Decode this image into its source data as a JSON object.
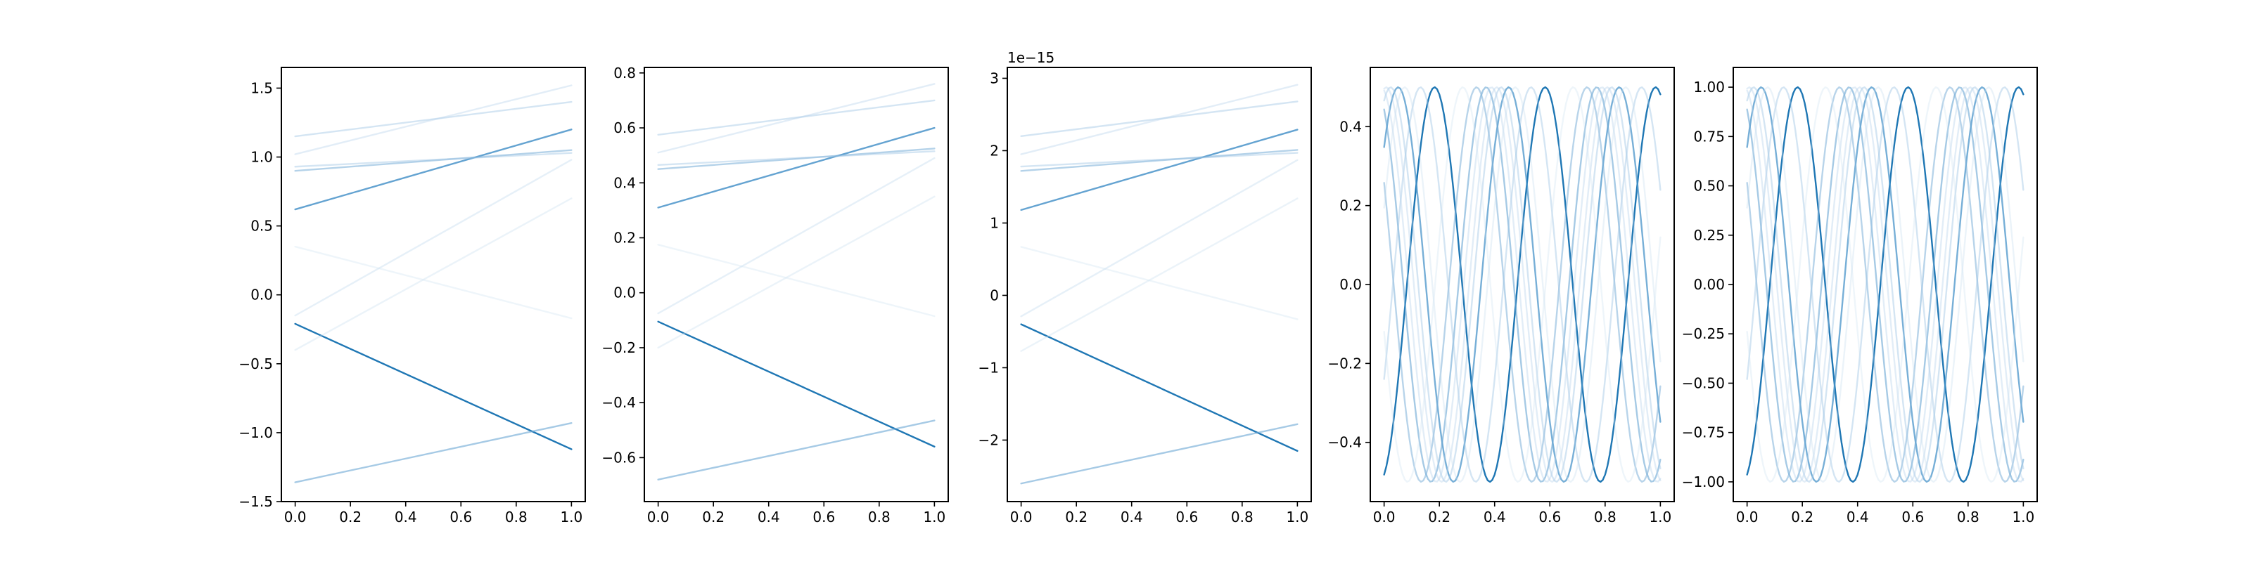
{
  "chart_data": [
    {
      "type": "line",
      "xlim": [
        -0.05,
        1.05
      ],
      "ylim": [
        -1.5,
        1.65
      ],
      "xticks": [
        "0.0",
        "0.2",
        "0.4",
        "0.6",
        "0.8",
        "1.0"
      ],
      "yticks": [
        "1.5",
        "1.0",
        "0.5",
        "0.0",
        "−0.5",
        "−1.0",
        "−1.5"
      ],
      "offset_label": "",
      "series": [
        {
          "x": [
            0.0,
            1.0
          ],
          "y": [
            -0.21,
            -1.12
          ],
          "color": "#1f77b4",
          "opacity": 1.0
        },
        {
          "x": [
            0.0,
            1.0
          ],
          "y": [
            0.62,
            1.2
          ],
          "color": "#3d8cc6",
          "opacity": 0.8
        },
        {
          "x": [
            0.0,
            1.0
          ],
          "y": [
            -1.36,
            -0.93
          ],
          "color": "#6aa6d4",
          "opacity": 0.6
        },
        {
          "x": [
            0.0,
            1.0
          ],
          "y": [
            0.9,
            1.05
          ],
          "color": "#6aa6d4",
          "opacity": 0.5
        },
        {
          "x": [
            0.0,
            1.0
          ],
          "y": [
            0.93,
            1.03
          ],
          "color": "#9fc5e4",
          "opacity": 0.45
        },
        {
          "x": [
            0.0,
            1.0
          ],
          "y": [
            1.15,
            1.4
          ],
          "color": "#9fc5e4",
          "opacity": 0.45
        },
        {
          "x": [
            0.0,
            1.0
          ],
          "y": [
            1.02,
            1.52
          ],
          "color": "#b6d3ea",
          "opacity": 0.4
        },
        {
          "x": [
            0.0,
            1.0
          ],
          "y": [
            -0.15,
            0.98
          ],
          "color": "#b6d3ea",
          "opacity": 0.35
        },
        {
          "x": [
            0.0,
            1.0
          ],
          "y": [
            -0.4,
            0.7
          ],
          "color": "#c6dcee",
          "opacity": 0.35
        },
        {
          "x": [
            0.0,
            1.0
          ],
          "y": [
            0.35,
            -0.17
          ],
          "color": "#cfe2f1",
          "opacity": 0.35
        }
      ]
    },
    {
      "type": "line",
      "xlim": [
        -0.05,
        1.05
      ],
      "ylim": [
        -0.76,
        0.82
      ],
      "xticks": [
        "0.0",
        "0.2",
        "0.4",
        "0.6",
        "0.8",
        "1.0"
      ],
      "yticks": [
        "0.8",
        "0.6",
        "0.4",
        "0.2",
        "0.0",
        "−0.2",
        "−0.4",
        "−0.6"
      ],
      "offset_label": "",
      "series": [
        {
          "x": [
            0.0,
            1.0
          ],
          "y": [
            -0.105,
            -0.56
          ],
          "color": "#1f77b4",
          "opacity": 1.0
        },
        {
          "x": [
            0.0,
            1.0
          ],
          "y": [
            0.31,
            0.6
          ],
          "color": "#3d8cc6",
          "opacity": 0.8
        },
        {
          "x": [
            0.0,
            1.0
          ],
          "y": [
            -0.68,
            -0.465
          ],
          "color": "#6aa6d4",
          "opacity": 0.6
        },
        {
          "x": [
            0.0,
            1.0
          ],
          "y": [
            0.45,
            0.525
          ],
          "color": "#6aa6d4",
          "opacity": 0.5
        },
        {
          "x": [
            0.0,
            1.0
          ],
          "y": [
            0.465,
            0.515
          ],
          "color": "#9fc5e4",
          "opacity": 0.45
        },
        {
          "x": [
            0.0,
            1.0
          ],
          "y": [
            0.575,
            0.7
          ],
          "color": "#9fc5e4",
          "opacity": 0.45
        },
        {
          "x": [
            0.0,
            1.0
          ],
          "y": [
            0.51,
            0.76
          ],
          "color": "#b6d3ea",
          "opacity": 0.4
        },
        {
          "x": [
            0.0,
            1.0
          ],
          "y": [
            -0.075,
            0.49
          ],
          "color": "#b6d3ea",
          "opacity": 0.35
        },
        {
          "x": [
            0.0,
            1.0
          ],
          "y": [
            -0.2,
            0.35
          ],
          "color": "#c6dcee",
          "opacity": 0.35
        },
        {
          "x": [
            0.0,
            1.0
          ],
          "y": [
            0.175,
            -0.085
          ],
          "color": "#cfe2f1",
          "opacity": 0.35
        }
      ]
    },
    {
      "type": "line",
      "xlim": [
        -0.05,
        1.05
      ],
      "ylim": [
        -2.85,
        3.15
      ],
      "xticks": [
        "0.0",
        "0.2",
        "0.4",
        "0.6",
        "0.8",
        "1.0"
      ],
      "yticks": [
        "3",
        "2",
        "1",
        "0",
        "−1",
        "−2"
      ],
      "offset_label": "1e−15",
      "series": [
        {
          "x": [
            0.0,
            1.0
          ],
          "y": [
            -0.4,
            -2.15
          ],
          "color": "#1f77b4",
          "opacity": 1.0
        },
        {
          "x": [
            0.0,
            1.0
          ],
          "y": [
            1.18,
            2.29
          ],
          "color": "#3d8cc6",
          "opacity": 0.8
        },
        {
          "x": [
            0.0,
            1.0
          ],
          "y": [
            -2.6,
            -1.78
          ],
          "color": "#6aa6d4",
          "opacity": 0.6
        },
        {
          "x": [
            0.0,
            1.0
          ],
          "y": [
            1.72,
            2.01
          ],
          "color": "#6aa6d4",
          "opacity": 0.5
        },
        {
          "x": [
            0.0,
            1.0
          ],
          "y": [
            1.78,
            1.97
          ],
          "color": "#9fc5e4",
          "opacity": 0.45
        },
        {
          "x": [
            0.0,
            1.0
          ],
          "y": [
            2.2,
            2.68
          ],
          "color": "#9fc5e4",
          "opacity": 0.45
        },
        {
          "x": [
            0.0,
            1.0
          ],
          "y": [
            1.95,
            2.91
          ],
          "color": "#b6d3ea",
          "opacity": 0.4
        },
        {
          "x": [
            0.0,
            1.0
          ],
          "y": [
            -0.29,
            1.87
          ],
          "color": "#b6d3ea",
          "opacity": 0.35
        },
        {
          "x": [
            0.0,
            1.0
          ],
          "y": [
            -0.77,
            1.34
          ],
          "color": "#c6dcee",
          "opacity": 0.35
        },
        {
          "x": [
            0.0,
            1.0
          ],
          "y": [
            0.67,
            -0.33
          ],
          "color": "#cfe2f1",
          "opacity": 0.35
        }
      ]
    },
    {
      "type": "line",
      "xlim": [
        -0.05,
        1.05
      ],
      "ylim": [
        -0.55,
        0.55
      ],
      "xticks": [
        "0.0",
        "0.2",
        "0.4",
        "0.6",
        "0.8",
        "1.0"
      ],
      "yticks": [
        "0.4",
        "0.2",
        "0.0",
        "−0.2",
        "−0.4"
      ],
      "offset_label": "",
      "wave": {
        "amplitude": 0.5,
        "cycles": 2.5,
        "samples": 120
      },
      "series": [
        {
          "phase": -1.3,
          "color": "#1f77b4",
          "opacity": 1.0
        },
        {
          "phase": 0.77,
          "color": "#4a94c9",
          "opacity": 0.75
        },
        {
          "phase": 2.05,
          "color": "#6aa6d4",
          "opacity": 0.6
        },
        {
          "phase": 2.6,
          "color": "#7db1d9",
          "opacity": 0.55
        },
        {
          "phase": -0.5,
          "color": "#9fc5e4",
          "opacity": 0.45
        },
        {
          "phase": 1.2,
          "color": "#9fc5e4",
          "opacity": 0.45
        },
        {
          "phase": 1.45,
          "color": "#b6d3ea",
          "opacity": 0.4
        },
        {
          "phase": 1.75,
          "color": "#b6d3ea",
          "opacity": 0.4
        },
        {
          "phase": 0.4,
          "color": "#c6dcee",
          "opacity": 0.35
        },
        {
          "phase": -2.9,
          "color": "#cfe2f1",
          "opacity": 0.35
        }
      ]
    },
    {
      "type": "line",
      "xlim": [
        -0.05,
        1.05
      ],
      "ylim": [
        -1.1,
        1.1
      ],
      "xticks": [
        "0.0",
        "0.2",
        "0.4",
        "0.6",
        "0.8",
        "1.0"
      ],
      "yticks": [
        "1.00",
        "0.75",
        "0.50",
        "0.25",
        "0.00",
        "−0.25",
        "−0.50",
        "−0.75",
        "−1.00"
      ],
      "offset_label": "",
      "wave": {
        "amplitude": 1.0,
        "cycles": 2.5,
        "samples": 120
      },
      "series": [
        {
          "phase": -1.3,
          "color": "#1f77b4",
          "opacity": 1.0
        },
        {
          "phase": 0.77,
          "color": "#4a94c9",
          "opacity": 0.75
        },
        {
          "phase": 2.05,
          "color": "#6aa6d4",
          "opacity": 0.6
        },
        {
          "phase": 2.6,
          "color": "#7db1d9",
          "opacity": 0.55
        },
        {
          "phase": -0.5,
          "color": "#9fc5e4",
          "opacity": 0.45
        },
        {
          "phase": 1.2,
          "color": "#9fc5e4",
          "opacity": 0.45
        },
        {
          "phase": 1.45,
          "color": "#b6d3ea",
          "opacity": 0.4
        },
        {
          "phase": 1.75,
          "color": "#b6d3ea",
          "opacity": 0.4
        },
        {
          "phase": 0.4,
          "color": "#c6dcee",
          "opacity": 0.35
        },
        {
          "phase": -2.9,
          "color": "#cfe2f1",
          "opacity": 0.35
        }
      ]
    }
  ]
}
